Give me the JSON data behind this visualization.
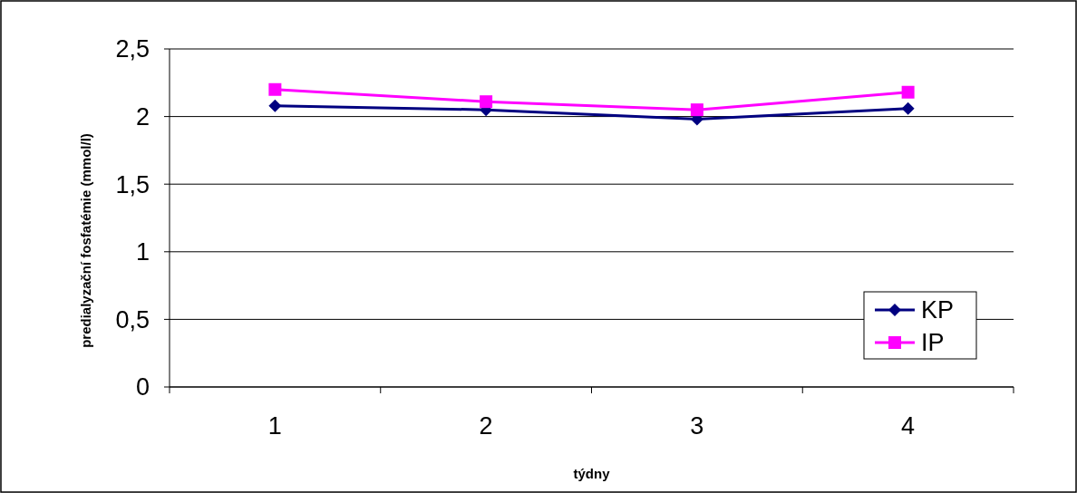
{
  "chart_data": {
    "type": "line",
    "xlabel": "týdny",
    "ylabel": "predialyzační fosfatémie (mmol/l)",
    "categories": [
      "1",
      "2",
      "3",
      "4"
    ],
    "series": [
      {
        "name": "KP",
        "color": "#000080",
        "marker": "diamond",
        "values": [
          2.08,
          2.05,
          1.98,
          2.06
        ]
      },
      {
        "name": "IP",
        "color": "#ff00ff",
        "marker": "square",
        "values": [
          2.2,
          2.11,
          2.05,
          2.18
        ]
      }
    ],
    "ylim": [
      0,
      2.5
    ],
    "yticks": [
      {
        "value": 0,
        "label": "0"
      },
      {
        "value": 0.5,
        "label": "0,5"
      },
      {
        "value": 1,
        "label": "1"
      },
      {
        "value": 1.5,
        "label": "1,5"
      },
      {
        "value": 2,
        "label": "2"
      },
      {
        "value": 2.5,
        "label": "2,5"
      }
    ],
    "grid": "y",
    "legend": "bottom right"
  }
}
